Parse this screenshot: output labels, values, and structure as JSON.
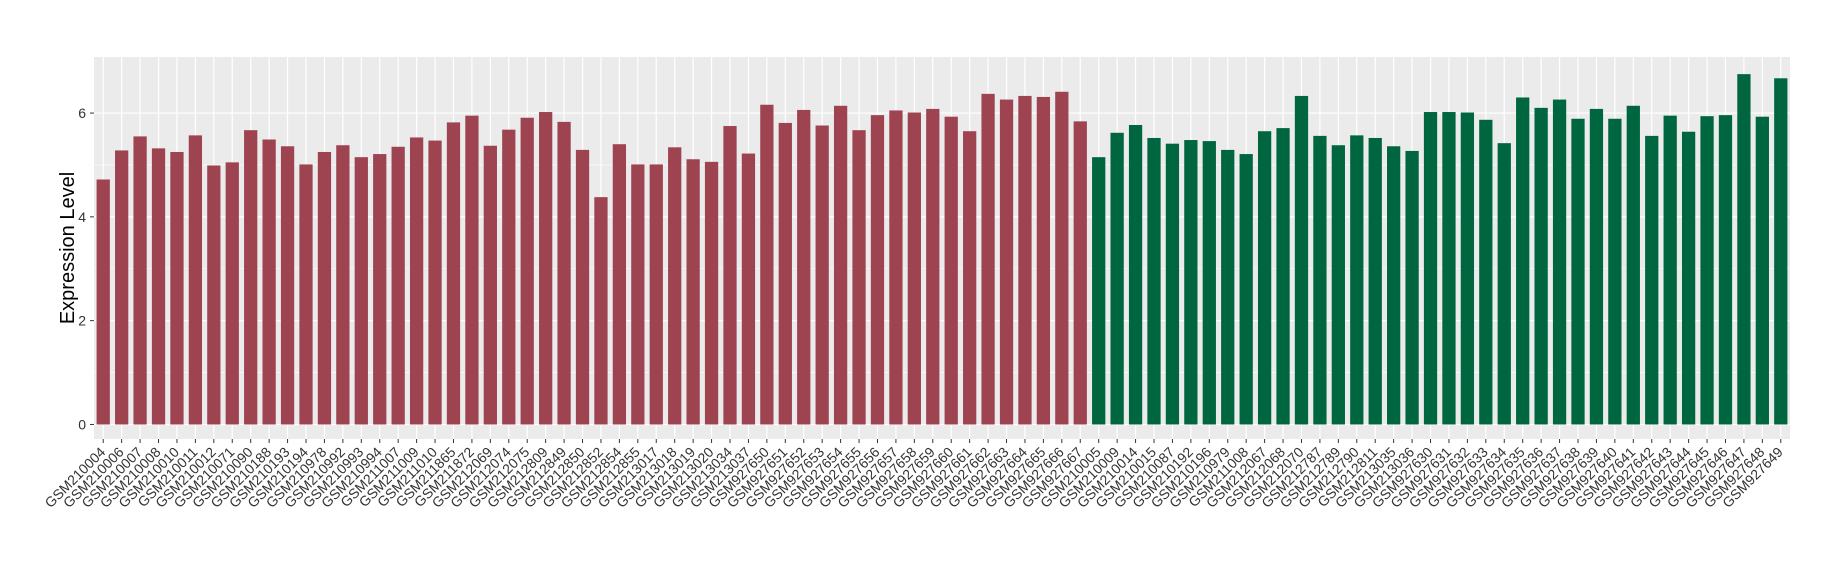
{
  "chart_data": {
    "type": "bar",
    "title": "",
    "xlabel": "",
    "ylabel": "Expression Level",
    "ylim": [
      -0.28,
      7.08
    ],
    "yticks": [
      0,
      2,
      4,
      6
    ],
    "grid": true,
    "colors": {
      "panel": "#ebebeb",
      "gridline": "#ffffff",
      "series_1": "#9e4451",
      "series_2": "#006640",
      "text": "#333333"
    },
    "categories": [
      "GSM210004",
      "GSM210006",
      "GSM210007",
      "GSM210008",
      "GSM210010",
      "GSM210011",
      "GSM210012",
      "GSM210071",
      "GSM210090",
      "GSM210188",
      "GSM210193",
      "GSM210194",
      "GSM210978",
      "GSM210992",
      "GSM210993",
      "GSM210994",
      "GSM211007",
      "GSM211009",
      "GSM211010",
      "GSM211865",
      "GSM211872",
      "GSM212069",
      "GSM212074",
      "GSM212075",
      "GSM212809",
      "GSM212849",
      "GSM212850",
      "GSM212852",
      "GSM212854",
      "GSM212855",
      "GSM213017",
      "GSM213018",
      "GSM213019",
      "GSM213020",
      "GSM213034",
      "GSM213037",
      "GSM927650",
      "GSM927651",
      "GSM927652",
      "GSM927653",
      "GSM927654",
      "GSM927655",
      "GSM927656",
      "GSM927657",
      "GSM927658",
      "GSM927659",
      "GSM927660",
      "GSM927661",
      "GSM927662",
      "GSM927663",
      "GSM927664",
      "GSM927665",
      "GSM927666",
      "GSM927667",
      "GSM210005",
      "GSM210009",
      "GSM210014",
      "GSM210015",
      "GSM210087",
      "GSM210192",
      "GSM210196",
      "GSM210979",
      "GSM211008",
      "GSM212067",
      "GSM212068",
      "GSM212070",
      "GSM212787",
      "GSM212789",
      "GSM212790",
      "GSM212811",
      "GSM213035",
      "GSM213036",
      "GSM927630",
      "GSM927631",
      "GSM927632",
      "GSM927633",
      "GSM927634",
      "GSM927635",
      "GSM927636",
      "GSM927637",
      "GSM927638",
      "GSM927639",
      "GSM927640",
      "GSM927641",
      "GSM927642",
      "GSM927643",
      "GSM927644",
      "GSM927645",
      "GSM927646",
      "GSM927647",
      "GSM927648",
      "GSM927649"
    ],
    "values": [
      4.72,
      5.28,
      5.55,
      5.32,
      5.25,
      5.57,
      4.99,
      5.05,
      5.67,
      5.49,
      5.36,
      5.01,
      5.25,
      5.38,
      5.15,
      5.21,
      5.35,
      5.53,
      5.47,
      5.82,
      5.95,
      5.37,
      5.68,
      5.91,
      6.02,
      5.83,
      5.29,
      4.38,
      5.4,
      5.01,
      5.01,
      5.34,
      5.11,
      5.06,
      5.75,
      5.22,
      6.16,
      5.81,
      6.06,
      5.76,
      6.14,
      5.67,
      5.96,
      6.05,
      6.01,
      6.08,
      5.93,
      5.65,
      6.37,
      6.26,
      6.33,
      6.31,
      6.41,
      5.84,
      5.15,
      5.62,
      5.77,
      5.52,
      5.41,
      5.48,
      5.46,
      5.29,
      5.21,
      5.65,
      5.71,
      6.33,
      5.56,
      5.38,
      5.57,
      5.52,
      5.36,
      5.27,
      6.02,
      6.02,
      6.01,
      5.87,
      5.42,
      6.3,
      6.1,
      6.26,
      5.89,
      6.08,
      5.89,
      6.14,
      5.56,
      5.95,
      5.64,
      5.94,
      5.96,
      6.75,
      5.93,
      6.67
    ],
    "groups": [
      {
        "name": "",
        "color": "#9e4451",
        "count": 54
      },
      {
        "name": "",
        "color": "#006640",
        "count": 38
      }
    ]
  }
}
